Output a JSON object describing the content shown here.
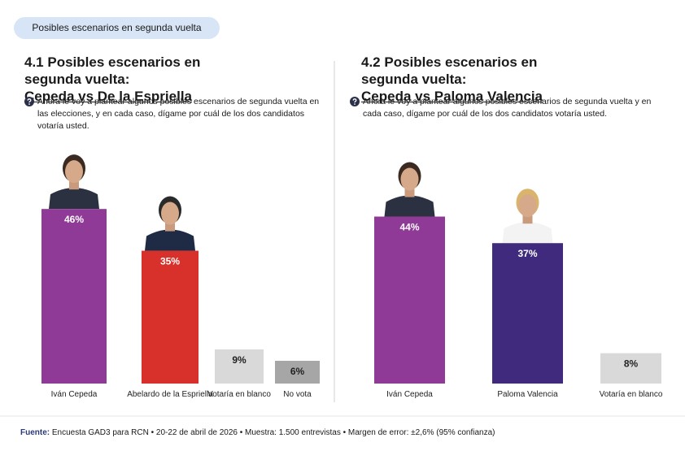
{
  "header": {
    "tab": "Posibles escenarios en segunda vuelta"
  },
  "chart_data": [
    {
      "type": "bar",
      "title": "4.1 Posibles escenarios en segunda vuelta:",
      "title_emphasis": "Cepeda vs De la Espriella",
      "question": "Ahora le voy a plantear algunos posibles escenarios de segunda vuelta en las elecciones, y en cada caso, dígame por cuál de los dos candidatos votaría usted.",
      "categories": [
        "Iván Cepeda",
        "Abelardo de la Espriella",
        "Votaría en blanco",
        "No vota"
      ],
      "values": [
        46,
        35,
        9,
        6
      ],
      "value_labels": [
        "46%",
        "35%",
        "9%",
        "6%"
      ],
      "colors": [
        "#8e3a96",
        "#d8302a",
        "#d9d9d9",
        "#a6a6a6"
      ]
    },
    {
      "type": "bar",
      "title": "4.2 Posibles escenarios en segunda vuelta:",
      "title_emphasis": "Cepeda vs Paloma Valencia",
      "question": "Ahora le voy a plantear algunos posibles escenarios de segunda vuelta y en cada caso, dígame por cuál de los dos candidatos votaría usted.",
      "categories": [
        "Iván Cepeda",
        "Paloma Valencia",
        "Votaría en blanco"
      ],
      "values": [
        44,
        37,
        8
      ],
      "value_labels": [
        "44%",
        "37%",
        "8%"
      ],
      "colors": [
        "#8e3a96",
        "#3f2a7e",
        "#d9d9d9"
      ]
    }
  ],
  "footer": {
    "source_label": "Fuente:",
    "source_text": "Encuesta GAD3 para RCN • 20-22 de abril de 2026 • Muestra: 1.500 entrevistas • Margen de error: ±2,6% (95% confianza)"
  }
}
